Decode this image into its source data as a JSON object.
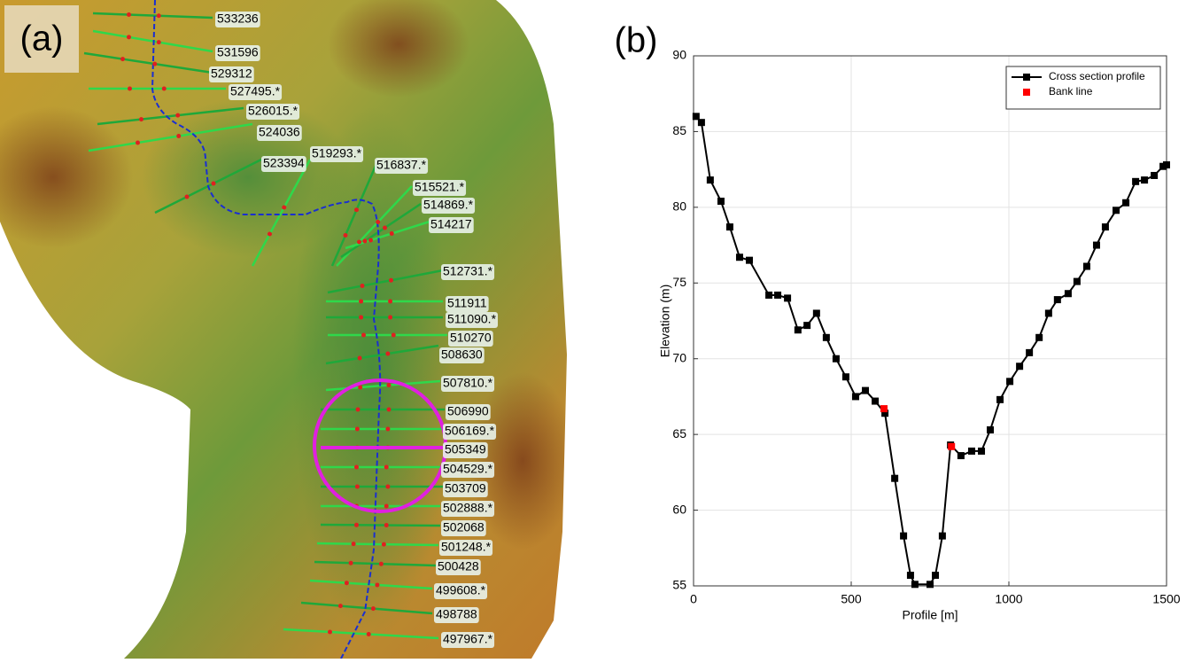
{
  "map": {
    "panel_label": "(a)",
    "sections": [
      "533236",
      "531596",
      "529312",
      "527495.*",
      "526015.*",
      "524036",
      "523394",
      "519293.*",
      "516837.*",
      "515521.*",
      "514869.*",
      "514217",
      "512731.*",
      "511911",
      "511090.*",
      "510270",
      "508630",
      "507810.*",
      "506990",
      "506169.*",
      "505349",
      "504529.*",
      "503709",
      "502888.*",
      "502068",
      "501248.*",
      "500428",
      "499608.*",
      "498788",
      "497967.*"
    ]
  },
  "chart_data": {
    "type": "line",
    "panel_label": "(b)",
    "x_label": "Profile [m]",
    "y_label": "Elevation (m)",
    "xlim": [
      0,
      1500
    ],
    "xticks": [
      0,
      500,
      1000,
      1500
    ],
    "ylim": [
      55,
      90
    ],
    "yticks": [
      55,
      60,
      65,
      70,
      75,
      80,
      85,
      90
    ],
    "grid": true,
    "legend": "upper right",
    "series": [
      {
        "name": "Cross section profile",
        "color": "#000000",
        "marker": "square",
        "line": true,
        "x": [
          8,
          25,
          53,
          87,
          115,
          146,
          177,
          239,
          267,
          298,
          331,
          360,
          390,
          421,
          452,
          483,
          514,
          545,
          576,
          607,
          638,
          666,
          688,
          702,
          750,
          767,
          789,
          815,
          848,
          882,
          913,
          941,
          972,
          1003,
          1034,
          1065,
          1096,
          1126,
          1154,
          1188,
          1216,
          1247,
          1278,
          1306,
          1340,
          1371,
          1402,
          1430,
          1461,
          1489,
          1500
        ],
        "values": [
          86.0,
          85.6,
          81.8,
          80.4,
          78.7,
          76.7,
          76.5,
          74.2,
          74.2,
          74.0,
          71.9,
          72.2,
          73.0,
          71.4,
          70.0,
          68.8,
          67.5,
          67.9,
          67.2,
          66.4,
          62.1,
          58.3,
          55.7,
          55.1,
          55.1,
          55.7,
          58.3,
          64.3,
          63.6,
          63.9,
          63.9,
          65.3,
          67.3,
          68.5,
          69.5,
          70.4,
          71.4,
          73.0,
          73.9,
          74.3,
          75.1,
          76.1,
          77.5,
          78.7,
          79.8,
          80.3,
          81.7,
          81.8,
          82.1,
          82.7,
          82.8
        ]
      },
      {
        "name": "Bank line",
        "color": "#ff0000",
        "marker": "square",
        "line": false,
        "x": [
          604,
          818
        ],
        "values": [
          66.7,
          64.2
        ]
      }
    ]
  }
}
